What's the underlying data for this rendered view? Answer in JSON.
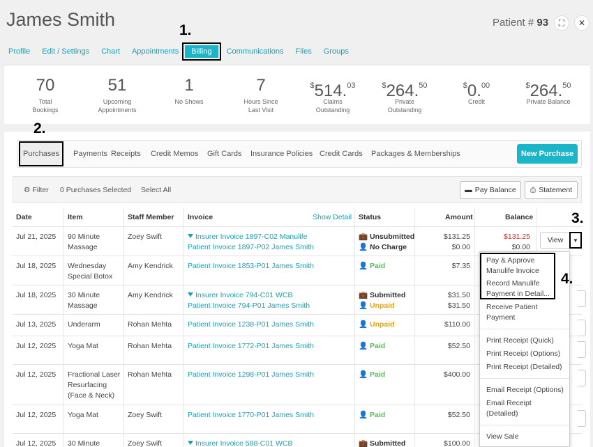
{
  "patient": {
    "name": "James Smith",
    "number_label": "Patient #",
    "number": "93"
  },
  "header_icons": {
    "expand": "⛶",
    "close": "✕"
  },
  "nav": [
    "Profile",
    "Edit / Settings",
    "Chart",
    "Appointments",
    "Billing",
    "Communications",
    "Files",
    "Groups"
  ],
  "stats": [
    {
      "value": "70",
      "label1": "Total",
      "label2": "Bookings"
    },
    {
      "value": "51",
      "label1": "Upcoming",
      "label2": "Appointments"
    },
    {
      "value": "1",
      "label1": "No Shows",
      "label2": ""
    },
    {
      "value": "7",
      "label1": "Hours Since",
      "label2": "Last Visit"
    },
    {
      "currency": "$",
      "value": "514.",
      "cents": "03",
      "label1": "Claims",
      "label2": "Outstanding"
    },
    {
      "currency": "$",
      "value": "264.",
      "cents": "50",
      "label1": "Private",
      "label2": "Outstanding"
    },
    {
      "currency": "$",
      "value": "0.",
      "cents": "00",
      "label1": "Credit",
      "label2": ""
    },
    {
      "currency": "$",
      "value": "264.",
      "cents": "50",
      "label1": "Private Balance",
      "label2": ""
    }
  ],
  "tabs": [
    "Purchases",
    "Payments",
    "Receipts",
    "Credit Memos",
    "Gift Cards",
    "Insurance Policies",
    "Credit Cards",
    "Packages & Memberships"
  ],
  "new_purchase": "New Purchase",
  "toolbar": {
    "filter": "Filter",
    "selected": "0 Purchases Selected",
    "select_all": "Select All",
    "pay_balance": "Pay Balance",
    "statement": "Statement"
  },
  "columns": {
    "date": "Date",
    "item": "Item",
    "staff": "Staff Member",
    "invoice": "Invoice",
    "show_detail": "Show Detail",
    "status": "Status",
    "amount": "Amount",
    "balance": "Balance"
  },
  "rows": [
    {
      "date": "Jul 21, 2025",
      "item": "90 Minute Massage",
      "staff": "Zoey Swift",
      "inv1": "Insurer Invoice 1897-C02 Manulife",
      "inv2": "Patient Invoice 1897-P02 James Smith",
      "st1": "Unsubmitted",
      "st2": "No Charge",
      "amt1": "$131.25",
      "amt2": "$0.00",
      "bal1": "$131.25",
      "bal2": "$0.00",
      "view": "View"
    },
    {
      "date": "Jul 18, 2025",
      "item": "Wednesday Special Botox",
      "staff": "Amy Kendrick",
      "inv1": "Patient Invoice 1853-P01 James Smith",
      "st1": "Paid",
      "amt1": "$7.35"
    },
    {
      "date": "Jul 18, 2025",
      "item": "30 Minute Massage",
      "staff": "Amy Kendrick",
      "inv1": "Insurer Invoice 794-C01 WCB",
      "inv2": "Patient Invoice 794-P01 James Smith",
      "st1": "Submitted",
      "st2": "Unpaid",
      "amt1": "$31.50",
      "amt2": "$31.50"
    },
    {
      "date": "Jul 13, 2025",
      "item": "Underarm",
      "staff": "Rohan Mehta",
      "inv1": "Patient Invoice 1238-P01 James Smith",
      "st1": "Unpaid",
      "amt1": "$110.00"
    },
    {
      "date": "Jul 12, 2025",
      "item": "Yoga Mat",
      "staff": "Rohan Mehta",
      "inv1": "Patient Invoice 1772-P01 James Smith",
      "st1": "Paid",
      "amt1": "$52.50"
    },
    {
      "date": "Jul 12, 2025",
      "item": "Fractional Laser Resurfacing (Face & Neck)",
      "staff": "Rohan Mehta",
      "inv1": "Patient Invoice 1298-P01 James Smith",
      "st1": "Paid",
      "amt1": "$400.00"
    },
    {
      "date": "Jul 12, 2025",
      "item": "Yoga Mat",
      "staff": "Zoey Swift",
      "inv1": "Patient Invoice 1770-P01 James Smith",
      "st1": "Paid",
      "amt1": "$52.50"
    },
    {
      "date": "Jul 12, 2025",
      "item": "30 Minute",
      "staff": "Zoey Swift",
      "inv1": "Insurer Invoice 588-C01 WCB",
      "st1": "Submitted",
      "amt1": "$100.00"
    }
  ],
  "dropdown": {
    "items": [
      "Pay & Approve Manulife Invoice",
      "Record Manulife Payment in Detail...",
      "Receive Patient Payment",
      "Print Receipt (Quick)",
      "Print Receipt (Options)",
      "Print Receipt (Detailed)",
      "Email Receipt (Options)",
      "Email Receipt (Detailed)",
      "View Sale"
    ]
  },
  "markers": [
    "1.",
    "2.",
    "3.",
    "4."
  ],
  "colors": {
    "accent": "#1ab5c9",
    "paid": "#5cb85c",
    "unpaid": "#f0a500",
    "balance_due": "#c9302c"
  }
}
